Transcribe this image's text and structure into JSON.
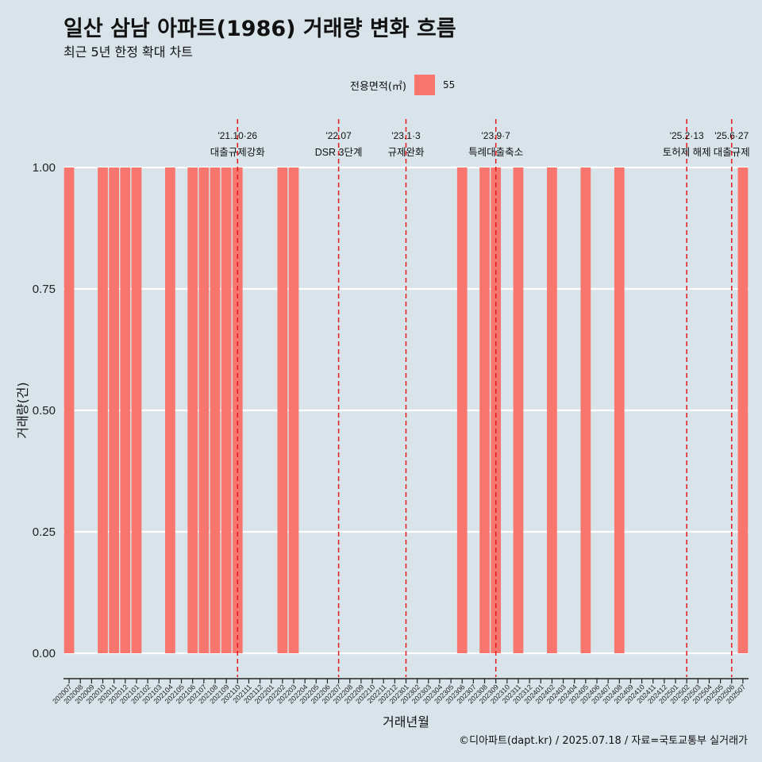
{
  "title": "일산 삼남 아파트(1986) 거래량 변화 흐름",
  "subtitle": "최근 5년 한정 확대 차트",
  "caption": "©디아파트(dapt.kr) / 2025.07.18 / 자료=국토교통부 실거래가",
  "colors": {
    "background": "#d8e4ea",
    "bar": "#f8766d",
    "vline": "#e41a1c",
    "grid": "#ffffff"
  },
  "chart_data": {
    "type": "bar",
    "xlabel": "거래년월",
    "ylabel": "거래량(건)",
    "ylim": [
      0,
      1
    ],
    "yticks": [
      "0.00",
      "0.25",
      "0.50",
      "0.75",
      "1.00"
    ],
    "grid": true,
    "legend": {
      "position": "top",
      "title": "전용면적(㎡)",
      "entries": [
        "55"
      ]
    },
    "categories": [
      "202007",
      "202008",
      "202009",
      "202010",
      "202011",
      "202012",
      "202101",
      "202102",
      "202103",
      "202104",
      "202105",
      "202106",
      "202107",
      "202108",
      "202109",
      "202110",
      "202111",
      "202112",
      "202201",
      "202202",
      "202203",
      "202204",
      "202205",
      "202206",
      "202207",
      "202208",
      "202209",
      "202210",
      "202211",
      "202212",
      "202301",
      "202302",
      "202303",
      "202304",
      "202305",
      "202306",
      "202307",
      "202308",
      "202309",
      "202310",
      "202311",
      "202312",
      "202401",
      "202402",
      "202403",
      "202404",
      "202405",
      "202406",
      "202407",
      "202408",
      "202409",
      "202410",
      "202411",
      "202412",
      "202501",
      "202502",
      "202503",
      "202504",
      "202505",
      "202506",
      "202507"
    ],
    "series": [
      {
        "name": "55",
        "values": [
          1,
          0,
          0,
          1,
          1,
          1,
          1,
          0,
          0,
          1,
          0,
          1,
          1,
          1,
          1,
          1,
          0,
          0,
          0,
          1,
          1,
          0,
          0,
          0,
          0,
          0,
          0,
          0,
          0,
          0,
          0,
          0,
          0,
          0,
          0,
          1,
          0,
          1,
          1,
          0,
          1,
          0,
          0,
          1,
          0,
          0,
          1,
          0,
          0,
          1,
          0,
          0,
          0,
          0,
          0,
          0,
          0,
          0,
          0,
          0,
          1
        ]
      }
    ],
    "annotations": [
      {
        "month": "202110",
        "date": "'21.10·26",
        "label": "대출규제강화"
      },
      {
        "month": "202207",
        "date": "'22.07",
        "label": "DSR 3단계"
      },
      {
        "month": "202301",
        "date": "'23.1·3",
        "label": "규제완화"
      },
      {
        "month": "202309",
        "date": "'23.9·7",
        "label": "특례대출축소"
      },
      {
        "month": "202502",
        "date": "'25.2·13",
        "label": "토허제 해제"
      },
      {
        "month": "202506",
        "date": "'25.6·27",
        "label": "대출규제"
      }
    ]
  }
}
